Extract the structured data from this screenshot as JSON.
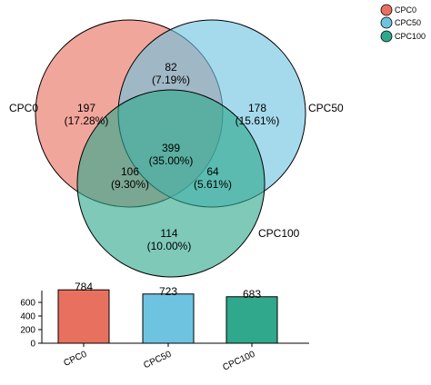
{
  "chart_data": [
    {
      "type": "venn",
      "sets": [
        {
          "name": "CPC0",
          "color": "#e8705f"
        },
        {
          "name": "CPC50",
          "color": "#6ec4e0"
        },
        {
          "name": "CPC100",
          "color": "#2fa88c"
        }
      ],
      "regions": [
        {
          "id": "cpc0_only",
          "sets": [
            "CPC0"
          ],
          "count": "197",
          "percent": "(17.28%)"
        },
        {
          "id": "cpc50_only",
          "sets": [
            "CPC50"
          ],
          "count": "178",
          "percent": "(15.61%)"
        },
        {
          "id": "cpc100_only",
          "sets": [
            "CPC100"
          ],
          "count": "114",
          "percent": "(10.00%)"
        },
        {
          "id": "cpc0_cpc50",
          "sets": [
            "CPC0",
            "CPC50"
          ],
          "count": "82",
          "percent": "(7.19%)"
        },
        {
          "id": "cpc0_cpc100",
          "sets": [
            "CPC0",
            "CPC100"
          ],
          "count": "106",
          "percent": "(9.30%)"
        },
        {
          "id": "cpc50_cpc100",
          "sets": [
            "CPC50",
            "CPC100"
          ],
          "count": "64",
          "percent": "(5.61%)"
        },
        {
          "id": "all",
          "sets": [
            "CPC0",
            "CPC50",
            "CPC100"
          ],
          "count": "399",
          "percent": "(35.00%)"
        }
      ],
      "legend": {
        "placement": "top-right",
        "entries": [
          "CPC0",
          "CPC50",
          "CPC100"
        ]
      }
    },
    {
      "type": "bar",
      "categories": [
        "CPC0",
        "CPC50",
        "CPC100"
      ],
      "values": [
        784,
        723,
        683
      ],
      "value_labels": [
        "784",
        "723",
        "683"
      ],
      "colors": [
        "#e8705f",
        "#6ec4e0",
        "#2fa88c"
      ],
      "ylim": [
        0,
        800
      ],
      "yticks": [
        "0",
        "200",
        "400",
        "600"
      ],
      "title": "",
      "xlabel": "",
      "ylabel": ""
    }
  ]
}
